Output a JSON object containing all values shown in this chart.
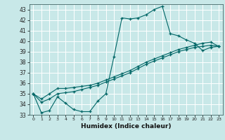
{
  "xlabel": "Humidex (Indice chaleur)",
  "background_color": "#c8e8e8",
  "grid_color": "#ffffff",
  "line_color": "#006666",
  "xlim": [
    -0.5,
    23.5
  ],
  "ylim": [
    33,
    43.5
  ],
  "yticks": [
    33,
    34,
    35,
    36,
    37,
    38,
    39,
    40,
    41,
    42,
    43
  ],
  "xticks": [
    0,
    1,
    2,
    3,
    4,
    5,
    6,
    7,
    8,
    9,
    10,
    11,
    12,
    13,
    14,
    15,
    16,
    17,
    18,
    19,
    20,
    21,
    22,
    23
  ],
  "series": [
    [
      35.0,
      33.2,
      33.4,
      34.7,
      34.1,
      33.5,
      33.3,
      33.3,
      34.3,
      35.0,
      38.5,
      42.2,
      42.1,
      42.2,
      42.5,
      43.0,
      43.3,
      40.7,
      40.5,
      40.1,
      39.8,
      39.1,
      39.4,
      39.5
    ],
    [
      35.0,
      34.5,
      35.0,
      35.5,
      35.5,
      35.6,
      35.7,
      35.8,
      36.0,
      36.3,
      36.6,
      36.9,
      37.2,
      37.6,
      38.0,
      38.3,
      38.6,
      38.9,
      39.2,
      39.4,
      39.6,
      39.8,
      39.9,
      39.5
    ],
    [
      35.0,
      34.2,
      34.5,
      35.0,
      35.1,
      35.2,
      35.4,
      35.6,
      35.8,
      36.1,
      36.4,
      36.7,
      37.0,
      37.4,
      37.8,
      38.1,
      38.4,
      38.7,
      39.0,
      39.2,
      39.4,
      39.5,
      39.6,
      39.5
    ]
  ]
}
